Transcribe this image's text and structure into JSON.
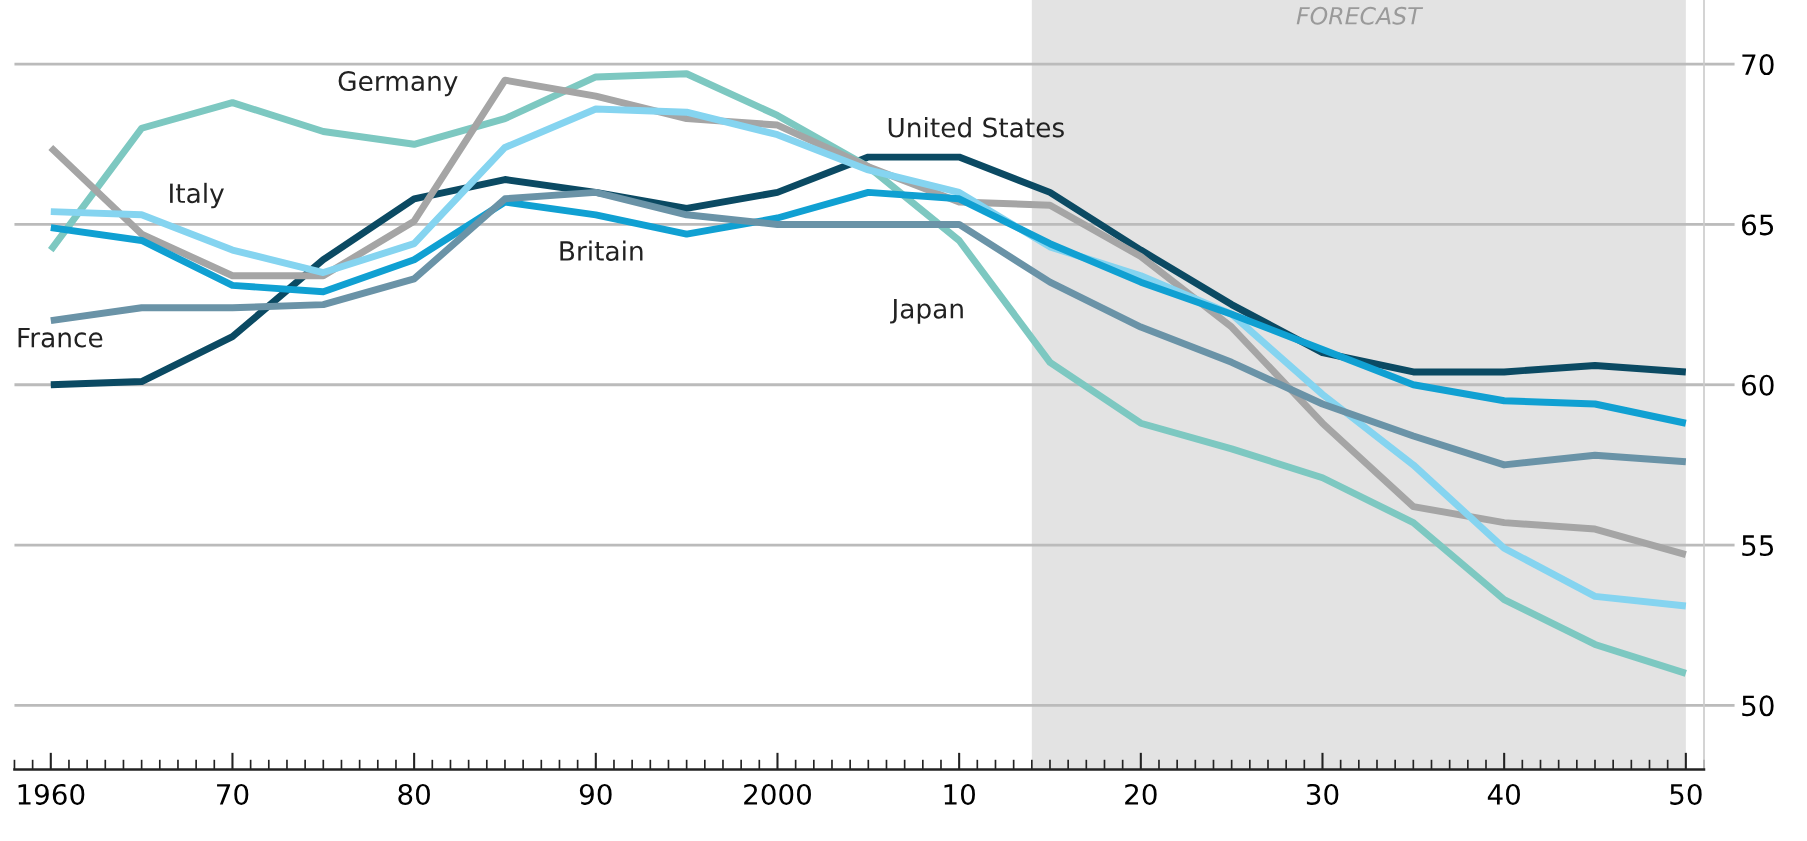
{
  "chart_data": {
    "type": "line",
    "x": [
      1960,
      1965,
      1970,
      1975,
      1980,
      1985,
      1990,
      1995,
      2000,
      2005,
      2010,
      2015,
      2020,
      2025,
      2030,
      2035,
      2040,
      2045,
      2050
    ],
    "series": [
      {
        "name": "United States",
        "color": "#0b4a63",
        "values": [
          60.0,
          60.1,
          61.5,
          63.9,
          65.8,
          66.4,
          66.0,
          65.5,
          66.0,
          67.1,
          67.1,
          66.0,
          64.2,
          62.5,
          61.0,
          60.4,
          60.4,
          60.6,
          60.4
        ]
      },
      {
        "name": "Japan",
        "color": "#7dc8c1",
        "values": [
          64.2,
          68.0,
          68.8,
          67.9,
          67.5,
          68.3,
          69.6,
          69.7,
          68.4,
          66.8,
          64.5,
          60.7,
          58.8,
          58.0,
          57.1,
          55.7,
          53.3,
          51.9,
          51.0
        ]
      },
      {
        "name": "Germany",
        "color": "#a5a5a5",
        "values": [
          67.4,
          64.7,
          63.4,
          63.4,
          65.1,
          69.5,
          69.0,
          68.3,
          68.1,
          66.8,
          65.7,
          65.6,
          64.0,
          61.8,
          58.8,
          56.2,
          55.7,
          55.5,
          54.7
        ]
      },
      {
        "name": "Italy",
        "color": "#85d4f0",
        "values": [
          65.4,
          65.3,
          64.2,
          63.5,
          64.4,
          67.4,
          68.6,
          68.5,
          67.8,
          66.7,
          66.0,
          64.3,
          63.4,
          62.2,
          59.7,
          57.5,
          54.9,
          53.4,
          53.1
        ]
      },
      {
        "name": "Britain",
        "color": "#10a0d2",
        "values": [
          64.9,
          64.5,
          63.1,
          62.9,
          63.9,
          65.7,
          65.3,
          64.7,
          65.2,
          66.0,
          65.8,
          64.4,
          63.2,
          62.2,
          61.1,
          60.0,
          59.5,
          59.4,
          58.8
        ]
      },
      {
        "name": "France",
        "color": "#6a93a7",
        "values": [
          62.0,
          62.4,
          62.4,
          62.5,
          63.3,
          65.8,
          66.0,
          65.3,
          65.0,
          65.0,
          65.0,
          63.2,
          61.8,
          60.7,
          59.4,
          58.4,
          57.5,
          57.8,
          57.6
        ]
      }
    ],
    "xlim": [
      1958,
      2051
    ],
    "xticks": [
      {
        "value": 1960,
        "label": "1960"
      },
      {
        "value": 1970,
        "label": "70"
      },
      {
        "value": 1980,
        "label": "80"
      },
      {
        "value": 1990,
        "label": "90"
      },
      {
        "value": 2000,
        "label": "2000"
      },
      {
        "value": 2010,
        "label": "10"
      },
      {
        "value": 2020,
        "label": "20"
      },
      {
        "value": 2030,
        "label": "30"
      },
      {
        "value": 2040,
        "label": "40"
      },
      {
        "value": 2050,
        "label": "50"
      }
    ],
    "ylim": [
      48,
      72
    ],
    "yticks": [
      50,
      55,
      60,
      65,
      70
    ],
    "grid": "y",
    "line_style": "solid",
    "legend": false,
    "bands": [
      {
        "axis": "x",
        "from": 2014,
        "to": 2050,
        "label": "FORECAST",
        "color": "#e3e3e3"
      }
    ]
  }
}
